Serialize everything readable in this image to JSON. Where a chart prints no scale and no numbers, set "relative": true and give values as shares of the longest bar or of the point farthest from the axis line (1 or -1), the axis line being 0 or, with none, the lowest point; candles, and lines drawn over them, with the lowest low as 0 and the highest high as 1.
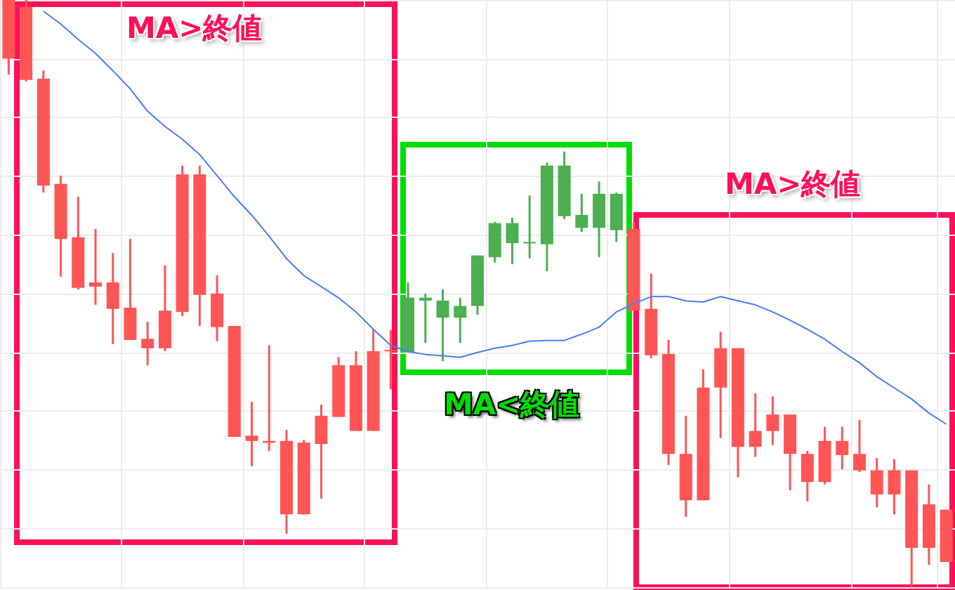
{
  "chart_data": [
    {
      "type": "candlestick",
      "relative": true,
      "grid": true,
      "tick_labels": false,
      "categories": [
        null,
        null,
        null,
        null,
        null,
        null,
        null,
        null,
        null,
        null,
        null,
        null,
        null,
        null,
        null,
        null,
        null,
        null,
        null,
        null,
        null,
        null,
        null,
        null,
        null,
        null,
        null,
        null,
        null,
        null,
        null,
        null,
        null,
        null,
        null,
        null,
        null,
        null,
        null,
        null,
        null,
        null,
        null,
        null,
        null,
        null,
        null,
        null,
        null,
        null,
        null,
        null,
        null,
        null,
        null
      ],
      "annotations": [
        "MA>終値",
        "MA<終値",
        "MA>終値"
      ],
      "ohlc": [
        [
          1.0,
          1.0,
          0.873,
          0.9
        ],
        [
          0.988,
          1.0,
          0.861,
          0.864
        ],
        [
          0.866,
          0.88,
          0.672,
          0.684
        ],
        [
          0.687,
          0.701,
          0.529,
          0.593
        ],
        [
          0.596,
          0.665,
          0.507,
          0.51
        ],
        [
          0.519,
          0.61,
          0.481,
          0.512
        ],
        [
          0.519,
          0.569,
          0.414,
          0.474
        ],
        [
          0.476,
          0.593,
          0.421,
          0.421
        ],
        [
          0.423,
          0.452,
          0.378,
          0.407
        ],
        [
          0.471,
          0.548,
          0.402,
          0.407
        ],
        [
          0.703,
          0.718,
          0.462,
          0.469
        ],
        [
          0.703,
          0.718,
          0.445,
          0.498
        ],
        [
          0.5,
          0.531,
          0.419,
          0.443
        ],
        [
          0.445,
          0.445,
          0.256,
          0.256
        ],
        [
          0.258,
          0.316,
          0.206,
          0.249
        ],
        [
          0.249,
          0.412,
          0.232,
          0.246
        ],
        [
          0.249,
          0.268,
          0.091,
          0.124
        ],
        [
          0.246,
          0.251,
          0.124,
          0.124
        ],
        [
          0.292,
          0.311,
          0.151,
          0.244
        ],
        [
          0.378,
          0.392,
          0.29,
          0.29
        ],
        [
          0.378,
          0.402,
          0.266,
          0.266
        ],
        [
          0.402,
          0.44,
          0.266,
          0.266
        ],
        [
          0.404,
          0.438,
          0.337,
          0.402
        ],
        [
          0.4,
          0.519,
          0.4,
          0.493
        ],
        [
          0.488,
          0.5,
          0.416,
          0.493
        ],
        [
          0.459,
          0.507,
          0.385,
          0.488
        ],
        [
          0.459,
          0.493,
          0.416,
          0.479
        ],
        [
          0.479,
          0.565,
          0.464,
          0.565
        ],
        [
          0.562,
          0.622,
          0.553,
          0.62
        ],
        [
          0.586,
          0.629,
          0.55,
          0.62
        ],
        [
          0.586,
          0.667,
          0.56,
          0.588
        ],
        [
          0.584,
          0.723,
          0.538,
          0.718
        ],
        [
          0.632,
          0.742,
          0.627,
          0.718
        ],
        [
          0.612,
          0.67,
          0.605,
          0.634
        ],
        [
          0.612,
          0.691,
          0.562,
          0.67
        ],
        [
          0.608,
          0.672,
          0.588,
          0.67
        ],
        [
          0.61,
          0.622,
          0.471,
          0.471
        ],
        [
          0.474,
          0.534,
          0.39,
          0.395
        ],
        [
          0.397,
          0.421,
          0.208,
          0.227
        ],
        [
          0.227,
          0.292,
          0.12,
          0.148
        ],
        [
          0.34,
          0.371,
          0.148,
          0.148
        ],
        [
          0.407,
          0.435,
          0.254,
          0.34
        ],
        [
          0.407,
          0.407,
          0.187,
          0.239
        ],
        [
          0.266,
          0.33,
          0.222,
          0.239
        ],
        [
          0.294,
          0.325,
          0.242,
          0.266
        ],
        [
          0.294,
          0.294,
          0.165,
          0.227
        ],
        [
          0.227,
          0.232,
          0.146,
          0.179
        ],
        [
          0.249,
          0.273,
          0.175,
          0.179
        ],
        [
          0.249,
          0.273,
          0.201,
          0.225
        ],
        [
          0.227,
          0.285,
          0.196,
          0.199
        ],
        [
          0.199,
          0.22,
          0.136,
          0.158
        ],
        [
          0.199,
          0.218,
          0.124,
          0.158
        ],
        [
          0.199,
          0.199,
          0.0,
          0.067
        ],
        [
          0.141,
          0.175,
          0.038,
          0.067
        ],
        [
          0.132,
          0.132,
          0.043,
          0.043
        ]
      ],
      "colors": [
        "#ff5555",
        "#ff5555",
        "#ff5555",
        "#ff5555",
        "#ff5555",
        "#ff5555",
        "#ff5555",
        "#ff5555",
        "#ff5555",
        "#ff5555",
        "#ff5555",
        "#ff5555",
        "#ff5555",
        "#ff5555",
        "#ff5555",
        "#ff5555",
        "#ff5555",
        "#ff5555",
        "#ff5555",
        "#ff5555",
        "#ff5555",
        "#ff5555",
        "#ff5555",
        "#4caf50",
        "#4caf50",
        "#4caf50",
        "#4caf50",
        "#4caf50",
        "#4caf50",
        "#4caf50",
        "#4caf50",
        "#4caf50",
        "#4caf50",
        "#4caf50",
        "#4caf50",
        "#4caf50",
        "#ff5555",
        "#ff5555",
        "#ff5555",
        "#ff5555",
        "#ff5555",
        "#ff5555",
        "#ff5555",
        "#ff5555",
        "#ff5555",
        "#ff5555",
        "#ff5555",
        "#ff5555",
        "#ff5555",
        "#ff5555",
        "#ff5555",
        "#ff5555",
        "#ff5555",
        "#ff5555",
        "#ff5555"
      ]
    },
    {
      "type": "line",
      "relative": true,
      "tick_labels": false,
      "color": "#4a7cf0",
      "categories": [
        null,
        null,
        null,
        null,
        null,
        null,
        null,
        null,
        null,
        null,
        null,
        null,
        null,
        null,
        null,
        null,
        null,
        null,
        null,
        null,
        null,
        null,
        null,
        null,
        null,
        null,
        null,
        null,
        null,
        null,
        null,
        null,
        null,
        null,
        null,
        null,
        null,
        null,
        null,
        null,
        null,
        null,
        null,
        null,
        null,
        null,
        null,
        null,
        null,
        null,
        null,
        null,
        null,
        null,
        null
      ],
      "values": [
        null,
        null,
        1.0,
        0.969,
        0.932,
        0.898,
        0.856,
        0.812,
        0.758,
        0.721,
        0.69,
        0.653,
        0.602,
        0.551,
        0.506,
        0.455,
        0.401,
        0.36,
        0.333,
        0.306,
        0.272,
        0.23,
        0.191,
        0.176,
        0.169,
        0.166,
        0.162,
        0.174,
        0.184,
        0.191,
        0.201,
        0.203,
        0.203,
        0.218,
        0.235,
        0.272,
        0.292,
        0.309,
        0.309,
        0.299,
        0.296,
        0.309,
        0.299,
        0.289,
        0.272,
        0.252,
        0.23,
        0.206,
        0.176,
        0.149,
        0.115,
        0.088,
        0.061,
        0.027,
        0.0
      ]
    }
  ]
}
